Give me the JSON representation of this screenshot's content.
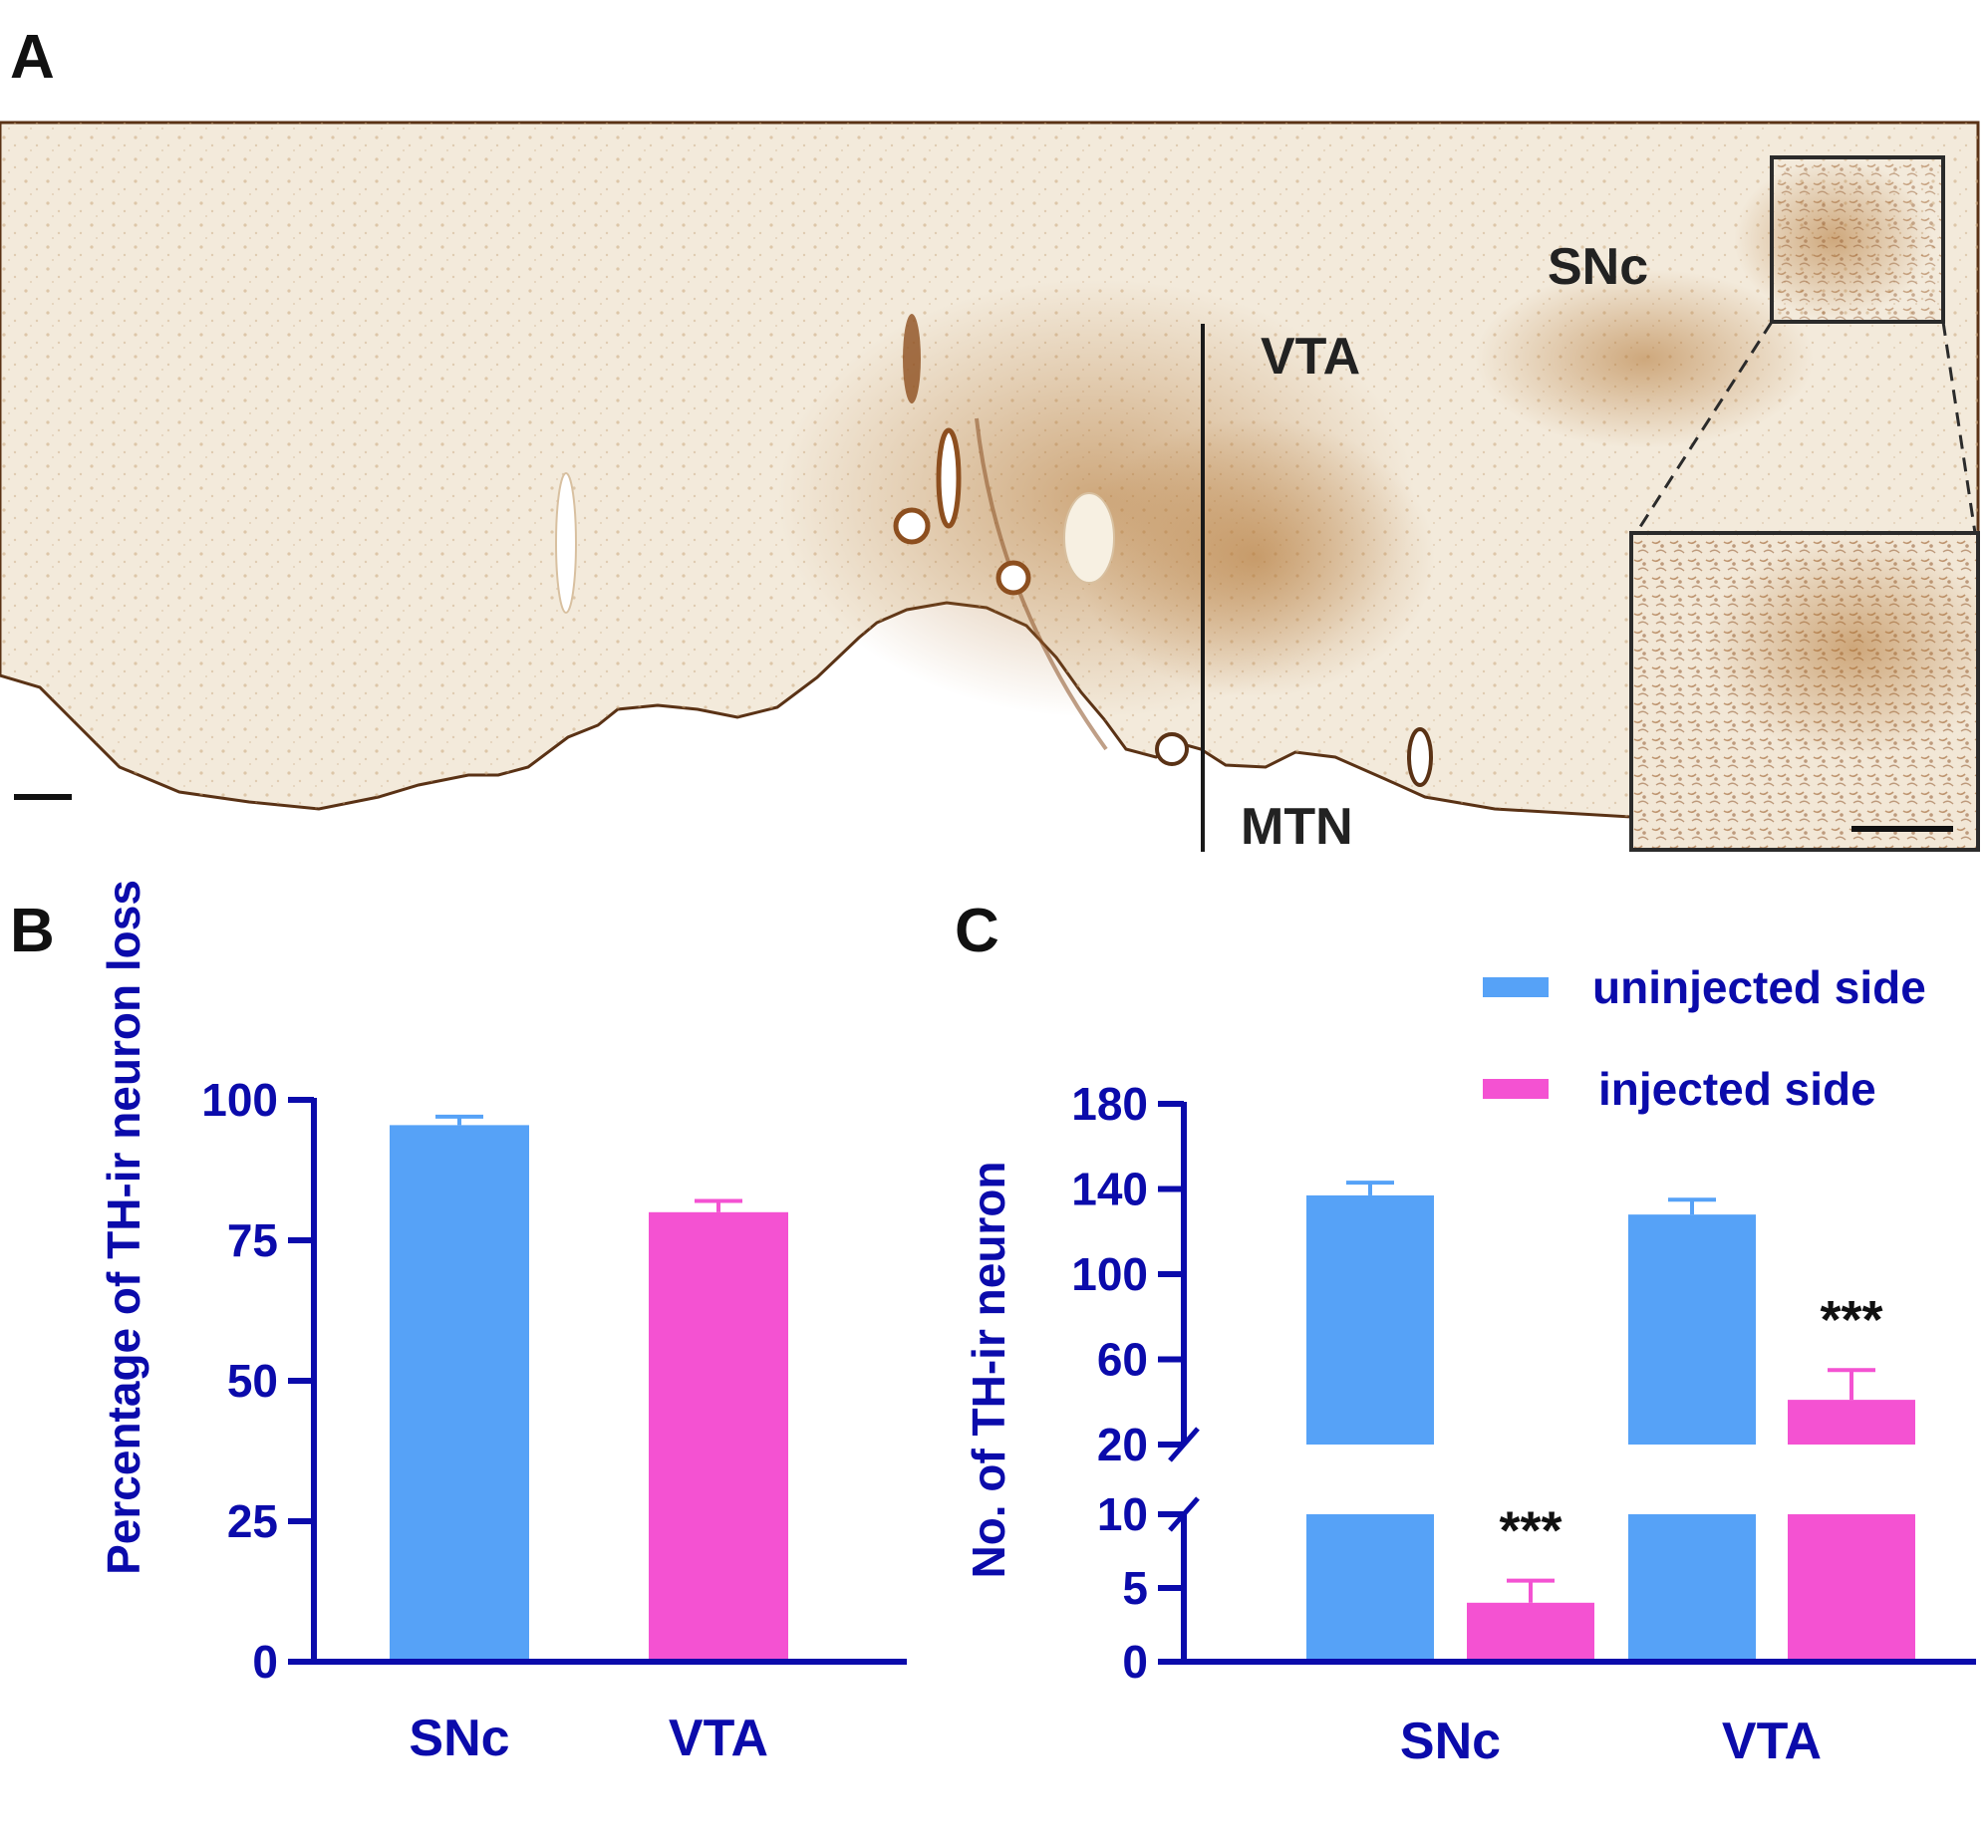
{
  "figure": {
    "panel_a": {
      "letter": "A",
      "labels": {
        "vta": "VTA",
        "snc": "SNc",
        "mtn": "MTN"
      }
    },
    "panel_b": {
      "letter": "B"
    },
    "panel_c": {
      "letter": "C"
    }
  },
  "colors": {
    "uninjected": "#56a2f7",
    "injected": "#f452d2",
    "axis": "#0b0bab",
    "tissue": "#f2e8d6",
    "stain": "#a8692e"
  },
  "chart_data": [
    {
      "id": "B",
      "type": "bar",
      "ylabel": "Percentage of TH-ir neuron loss",
      "xlabel": "",
      "categories": [
        "SNc",
        "VTA"
      ],
      "values": [
        95.5,
        80.0
      ],
      "errors": [
        1.5,
        2.0
      ],
      "bar_colors": [
        "uninjected",
        "injected"
      ],
      "ylim": [
        0,
        100
      ],
      "yticks": [
        0,
        25,
        50,
        75,
        100
      ],
      "grid": false
    },
    {
      "id": "C",
      "type": "bar",
      "ylabel": "No. of TH-ir neuron",
      "xlabel": "",
      "categories": [
        "SNc",
        "VTA"
      ],
      "series": [
        {
          "name": "uninjected side",
          "values": [
            137,
            128
          ],
          "errors": [
            6,
            7
          ]
        },
        {
          "name": "injected side",
          "values": [
            4,
            41
          ],
          "errors": [
            1.5,
            14
          ]
        }
      ],
      "y_axis_break": {
        "lower_range": [
          0,
          10
        ],
        "upper_range": [
          20,
          180
        ]
      },
      "yticks_lower": [
        0,
        5,
        10
      ],
      "yticks_upper": [
        20,
        60,
        100,
        140,
        180
      ],
      "annotations": [
        {
          "category": "SNc",
          "series": "injected side",
          "text": "***"
        },
        {
          "category": "VTA",
          "series": "injected side",
          "text": "***"
        }
      ],
      "legend": "top-right",
      "grid": false
    }
  ]
}
